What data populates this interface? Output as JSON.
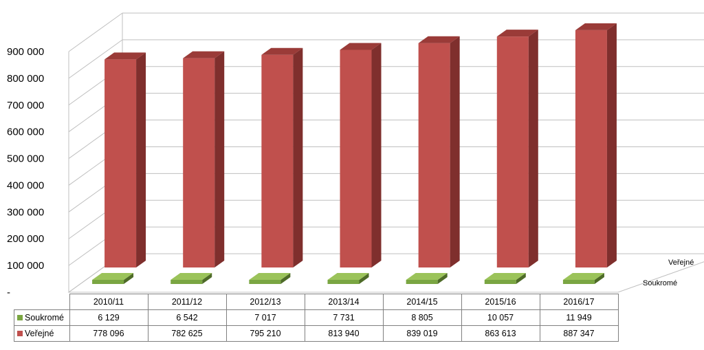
{
  "chart_data": {
    "type": "bar",
    "style": "3d-column",
    "categories": [
      "2010/11",
      "2011/12",
      "2012/13",
      "2013/14",
      "2014/15",
      "2015/16",
      "2016/17"
    ],
    "series": [
      {
        "name": "Soukromé",
        "color": "#7aa642",
        "values": [
          6129,
          6542,
          7017,
          7731,
          8805,
          10057,
          11949
        ]
      },
      {
        "name": "Veřejné",
        "color": "#c0504d",
        "values": [
          778096,
          782625,
          795210,
          813940,
          839019,
          863613,
          887347
        ]
      }
    ],
    "y_tick_labels": [
      "-",
      "100 000",
      "200 000",
      "300 000",
      "400 000",
      "500 000",
      "600 000",
      "700 000",
      "800 000",
      "900 000"
    ],
    "ylim": [
      0,
      900000
    ],
    "grid": true,
    "legend": "data-table",
    "depth_axis_labels": [
      "Veřejné",
      "Soukromé"
    ],
    "table": {
      "rows": [
        {
          "label": "Soukromé",
          "values": [
            "6 129",
            "6 542",
            "7 017",
            "7 731",
            "8 805",
            "10 057",
            "11 949"
          ]
        },
        {
          "label": "Veřejné",
          "values": [
            "778 096",
            "782 625",
            "795 210",
            "813 940",
            "839 019",
            "863 613",
            "887 347"
          ]
        }
      ]
    }
  }
}
